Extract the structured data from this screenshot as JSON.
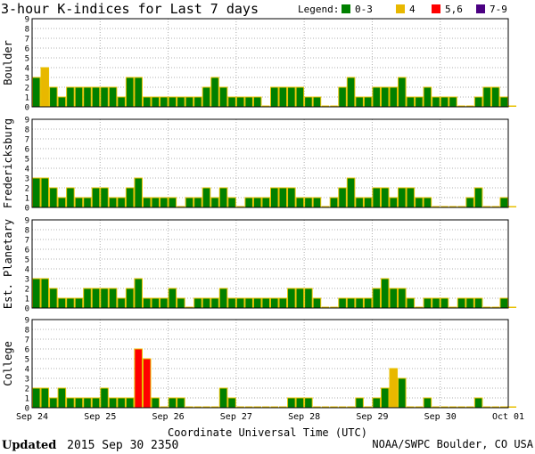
{
  "title": "3-hour K-indices for Last 7 days",
  "legend": {
    "label": "Legend:",
    "items": [
      {
        "label": "0-3",
        "color": "#008000"
      },
      {
        "label": "4",
        "color": "#e8b800"
      },
      {
        "label": "5,6",
        "color": "#ff0000"
      },
      {
        "label": "7-9",
        "color": "#4b0082"
      }
    ]
  },
  "colors": {
    "bar_outline": "#e8c000",
    "grid": "#b0b0b0",
    "frame": "#000000"
  },
  "xlabel": "Coordinate Universal Time (UTC)",
  "footer": {
    "updated_label": "Updated",
    "updated_value": "2015 Sep 30 2350",
    "credit": "NOAA/SWPC Boulder, CO USA"
  },
  "chart_data": {
    "type": "bar",
    "x_tick_labels": [
      "Sep 24",
      "Sep 25",
      "Sep 26",
      "Sep 27",
      "Sep 28",
      "Sep 29",
      "Sep 30",
      "Oct 01"
    ],
    "y_ticks": [
      "0",
      "1",
      "2",
      "3",
      "4",
      "5",
      "6",
      "7",
      "8",
      "9"
    ],
    "ylim": [
      0,
      9
    ],
    "intervals_per_day": 8,
    "days": 7,
    "grid": true,
    "series": [
      {
        "name": "Boulder",
        "values": [
          3,
          4,
          2,
          1,
          2,
          2,
          2,
          2,
          2,
          2,
          1,
          3,
          3,
          1,
          1,
          1,
          1,
          1,
          1,
          1,
          2,
          3,
          2,
          1,
          1,
          1,
          1,
          0,
          2,
          2,
          2,
          2,
          1,
          1,
          0,
          0,
          2,
          3,
          1,
          1,
          2,
          2,
          2,
          3,
          1,
          1,
          2,
          1,
          1,
          1,
          0,
          0,
          1,
          2,
          2,
          1,
          0
        ]
      },
      {
        "name": "Fredericksburg",
        "values": [
          3,
          3,
          2,
          1,
          2,
          1,
          1,
          2,
          2,
          1,
          1,
          2,
          3,
          1,
          1,
          1,
          1,
          0,
          1,
          1,
          2,
          1,
          2,
          1,
          0,
          1,
          1,
          1,
          2,
          2,
          2,
          1,
          1,
          1,
          0,
          1,
          2,
          3,
          1,
          1,
          2,
          2,
          1,
          2,
          2,
          1,
          1,
          0,
          0,
          0,
          0,
          1,
          2,
          0,
          0,
          1,
          0
        ]
      },
      {
        "name": "Est. Planetary",
        "values": [
          3,
          3,
          2,
          1,
          1,
          1,
          2,
          2,
          2,
          2,
          1,
          2,
          3,
          1,
          1,
          1,
          2,
          1,
          0,
          1,
          1,
          1,
          2,
          1,
          1,
          1,
          1,
          1,
          1,
          1,
          2,
          2,
          2,
          1,
          0,
          0,
          1,
          1,
          1,
          1,
          2,
          3,
          2,
          2,
          1,
          0,
          1,
          1,
          1,
          0,
          1,
          1,
          1,
          0,
          0,
          1,
          0
        ]
      },
      {
        "name": "College",
        "values": [
          2,
          2,
          1,
          2,
          1,
          1,
          1,
          1,
          2,
          1,
          1,
          1,
          6,
          5,
          1,
          0,
          1,
          1,
          0,
          0,
          0,
          0,
          2,
          1,
          0,
          0,
          0,
          0,
          0,
          0,
          1,
          1,
          1,
          0,
          0,
          0,
          0,
          0,
          1,
          0,
          1,
          2,
          4,
          3,
          0,
          0,
          1,
          0,
          0,
          0,
          0,
          0,
          1,
          0,
          0,
          0,
          0
        ]
      }
    ]
  }
}
